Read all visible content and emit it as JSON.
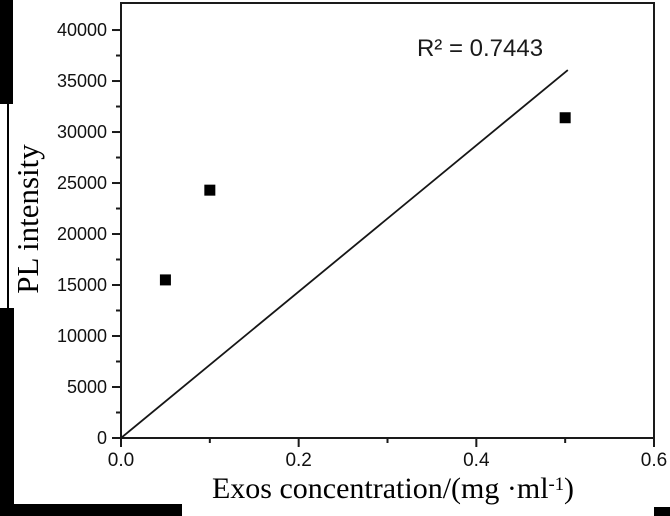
{
  "chart_data": {
    "type": "scatter",
    "title": "",
    "ylabel": "PL intensity",
    "xlabel": {
      "text": "Exos concentration/(mg ·ml",
      "sup": "-1",
      "suffix": ")"
    },
    "annotation": "R² = 0.7443",
    "xlim": [
      0,
      0.6
    ],
    "ylim": [
      0,
      42650
    ],
    "x_ticks": {
      "values": [
        0.0,
        0.2,
        0.4,
        0.6
      ],
      "labels": [
        "0.0",
        "0.2",
        "0.4",
        "0.6"
      ]
    },
    "x_minor_ticks": [
      0.1,
      0.3,
      0.5
    ],
    "y_ticks": {
      "values": [
        0,
        5000,
        10000,
        15000,
        20000,
        25000,
        30000,
        35000,
        40000
      ],
      "labels": [
        "0",
        "5000",
        "10000",
        "15000",
        "20000",
        "25000",
        "30000",
        "35000",
        "40000"
      ]
    },
    "y_minor_ticks": [
      2500,
      7500,
      12500,
      17500,
      22500,
      27500,
      32500,
      37500
    ],
    "points": [
      {
        "x": 0.05,
        "y": 15500
      },
      {
        "x": 0.1,
        "y": 24300
      },
      {
        "x": 0.5,
        "y": 31400
      }
    ],
    "fit_line": {
      "x1": 0,
      "y1": 0,
      "x2": 0.503,
      "y2": 36080,
      "r_squared": 0.7443
    },
    "marker": {
      "shape": "square",
      "size": 11
    },
    "grid": false,
    "legend": "none",
    "colors": {
      "marker": "#000000",
      "fit_line": "#161616",
      "frame": "#1a1a1a",
      "tick": "#1a1a1a",
      "tick_label": "#111111",
      "background": "#ffffff",
      "crop_artifact": "#000000"
    }
  }
}
